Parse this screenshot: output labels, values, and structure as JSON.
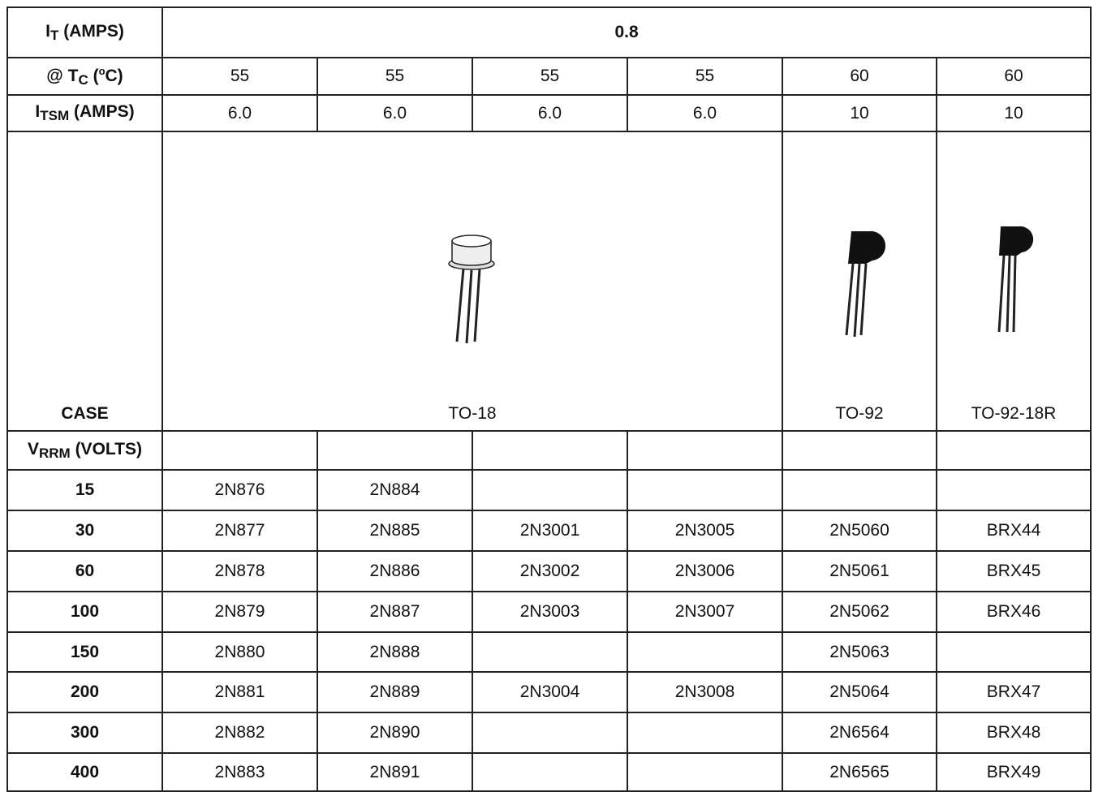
{
  "header": {
    "it_label": {
      "symbol": "I",
      "subscript": "T",
      "units": "(AMPS)"
    },
    "it_value": "0.8",
    "tc_label": {
      "symbol": "@ T",
      "subscript": "C",
      "open": "(",
      "superscript": "o",
      "close": "C)"
    },
    "tc_values": [
      "55",
      "55",
      "55",
      "55",
      "60",
      "60"
    ],
    "itsm_label": {
      "symbol": "I",
      "subscript": "TSM",
      "units": "(AMPS)"
    },
    "itsm_values": [
      "6.0",
      "6.0",
      "6.0",
      "6.0",
      "10",
      "10"
    ],
    "case_label": "CASE",
    "cases": [
      "TO-18",
      "TO-92",
      "TO-92-18R"
    ],
    "vrrm_label": {
      "symbol": "V",
      "subscript": "RRM",
      "units": "(VOLTS)"
    }
  },
  "table": {
    "rows": [
      [
        "15",
        "2N876",
        "2N884",
        null,
        null,
        null,
        null
      ],
      [
        "30",
        "2N877",
        "2N885",
        "2N3001",
        "2N3005",
        "2N5060",
        "BRX44"
      ],
      [
        "60",
        "2N878",
        "2N886",
        "2N3002",
        "2N3006",
        "2N5061",
        "BRX45"
      ],
      [
        "100",
        "2N879",
        "2N887",
        "2N3003",
        "2N3007",
        "2N5062",
        "BRX46"
      ],
      [
        "150",
        "2N880",
        "2N888",
        null,
        null,
        "2N5063",
        null
      ],
      [
        "200",
        "2N881",
        "2N889",
        "2N3004",
        "2N3008",
        "2N5064",
        "BRX47"
      ],
      [
        "300",
        "2N882",
        "2N890",
        null,
        null,
        "2N6564",
        "BRX48"
      ],
      [
        "400",
        "2N883",
        "2N891",
        null,
        null,
        "2N6565",
        "BRX49"
      ]
    ]
  }
}
